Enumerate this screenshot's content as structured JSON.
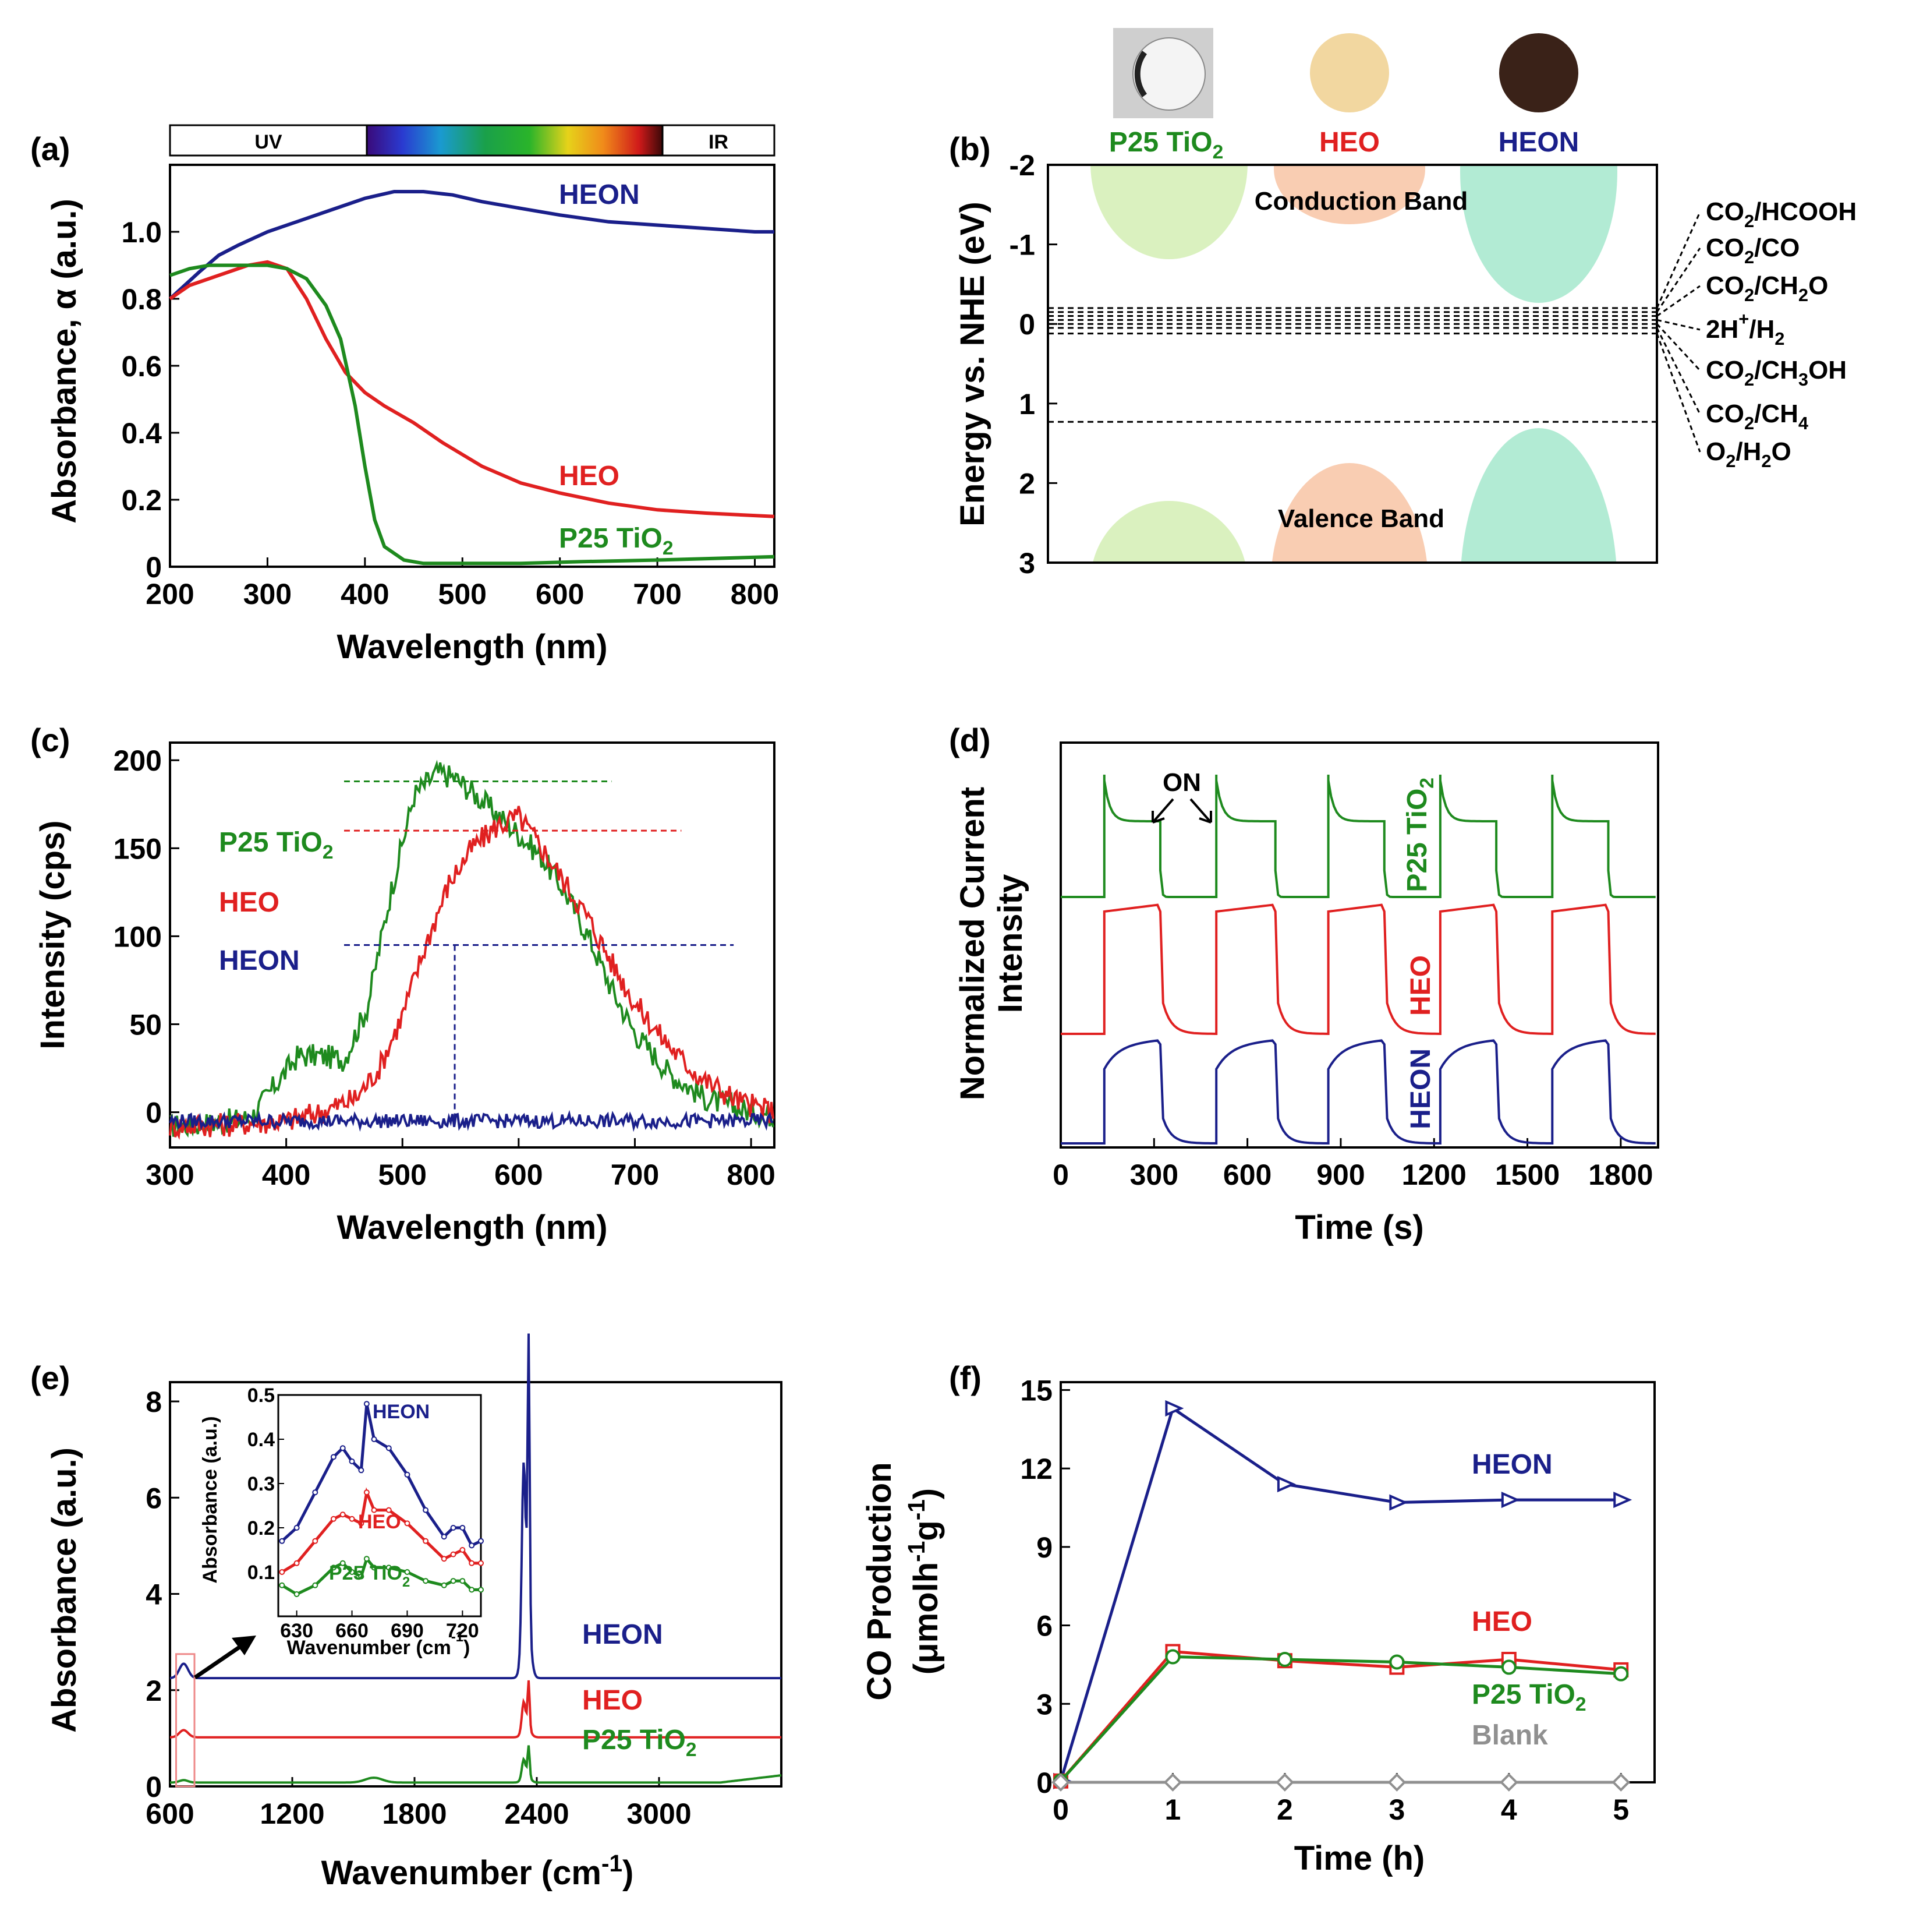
{
  "colors": {
    "heon": "#1a1f8a",
    "heo": "#e02020",
    "p25": "#1e8a1e",
    "blank": "#909090"
  },
  "chart_data": [
    {
      "panel": "(a)",
      "type": "line",
      "xlabel": "Wavelength (nm)",
      "ylabel": "Absorbance, α (a.u.)",
      "xlim": [
        200,
        820
      ],
      "ylim": [
        0,
        1.2
      ],
      "xticks": [
        "200",
        "300",
        "400",
        "500",
        "600",
        "700",
        "800"
      ],
      "yticks": [
        "0",
        "0.2",
        "0.4",
        "0.6",
        "0.8",
        "1.0"
      ],
      "spectrum_bar": {
        "left": "UV",
        "right": "IR"
      },
      "series": [
        {
          "name": "HEON",
          "label": "HEON",
          "color": "#1a1f8a",
          "x": [
            200,
            215,
            230,
            250,
            270,
            300,
            330,
            360,
            380,
            400,
            430,
            460,
            490,
            520,
            560,
            600,
            650,
            700,
            750,
            800,
            820
          ],
          "y": [
            0.8,
            0.84,
            0.88,
            0.93,
            0.96,
            1.0,
            1.03,
            1.06,
            1.08,
            1.1,
            1.12,
            1.12,
            1.11,
            1.09,
            1.07,
            1.05,
            1.03,
            1.02,
            1.01,
            1.0,
            1.0
          ]
        },
        {
          "name": "HEO",
          "label": "HEO",
          "color": "#e02020",
          "x": [
            200,
            220,
            240,
            260,
            280,
            300,
            320,
            340,
            360,
            380,
            400,
            420,
            450,
            480,
            520,
            560,
            600,
            650,
            700,
            750,
            820
          ],
          "y": [
            0.8,
            0.84,
            0.86,
            0.88,
            0.9,
            0.91,
            0.89,
            0.8,
            0.68,
            0.58,
            0.52,
            0.48,
            0.43,
            0.37,
            0.3,
            0.25,
            0.22,
            0.19,
            0.17,
            0.16,
            0.15
          ]
        },
        {
          "name": "P25 TiO₂",
          "label": "P25 TiO",
          "sub": "2",
          "color": "#1e8a1e",
          "x": [
            200,
            220,
            240,
            260,
            280,
            300,
            320,
            340,
            360,
            375,
            390,
            400,
            410,
            420,
            440,
            460,
            500,
            560,
            620,
            700,
            820
          ],
          "y": [
            0.87,
            0.89,
            0.9,
            0.9,
            0.9,
            0.9,
            0.89,
            0.86,
            0.78,
            0.68,
            0.48,
            0.3,
            0.14,
            0.06,
            0.02,
            0.01,
            0.01,
            0.01,
            0.015,
            0.02,
            0.03
          ]
        }
      ]
    },
    {
      "panel": "(b)",
      "type": "diagram",
      "ylabel": "Energy vs. NHE (eV)",
      "ylim": [
        -2,
        3
      ],
      "yticks": [
        "-2",
        "-1",
        "0",
        "1",
        "2",
        "3"
      ],
      "materials": [
        "P25 TiO",
        "HEO",
        "HEON"
      ],
      "material_sub": [
        "2",
        "",
        ""
      ],
      "band_labels": {
        "cb": "Conduction Band",
        "vb": "Valence Band"
      },
      "potential_lines_eV": [
        -0.2,
        -0.15,
        -0.1,
        -0.05,
        0.0,
        0.05,
        0.12,
        1.23
      ],
      "redox_labels": [
        {
          "main": "CO",
          "sub": "2",
          "rest": "/HCOOH"
        },
        {
          "main": "CO",
          "sub": "2",
          "rest": "/CO"
        },
        {
          "main": "CO",
          "sub": "2",
          "rest": "/CH",
          "sub2": "2",
          "rest2": "O"
        },
        {
          "main": "2H",
          "sup": "+",
          "rest": "/H",
          "sub2": "2",
          "rest2": ""
        },
        {
          "main": "CO",
          "sub": "2",
          "rest": "/CH",
          "sub2": "3",
          "rest2": "OH"
        },
        {
          "main": "CO",
          "sub": "2",
          "rest": "/CH",
          "sub2": "4",
          "rest2": ""
        },
        {
          "main": "O",
          "sub": "2",
          "rest": "/H",
          "sub2": "2",
          "rest2": "O"
        }
      ]
    },
    {
      "panel": "(c)",
      "type": "line",
      "xlabel": "Wavelength (nm)",
      "ylabel": "Intensity (cps)",
      "xlim": [
        300,
        820
      ],
      "ylim": [
        -20,
        210
      ],
      "xticks": [
        "300",
        "400",
        "500",
        "600",
        "700",
        "800"
      ],
      "yticks": [
        "0",
        "50",
        "100",
        "150",
        "200"
      ],
      "series": [
        {
          "name": "P25 TiO₂",
          "label": "P25 TiO",
          "sub": "2",
          "color": "#1e8a1e",
          "x": [
            300,
            340,
            370,
            390,
            410,
            430,
            450,
            470,
            490,
            510,
            530,
            545,
            560,
            580,
            600,
            620,
            640,
            660,
            680,
            700,
            730,
            760,
            790,
            820
          ],
          "y": [
            -8,
            -6,
            -3,
            15,
            32,
            32,
            30,
            60,
            125,
            180,
            193,
            190,
            182,
            170,
            158,
            145,
            125,
            100,
            70,
            45,
            22,
            8,
            2,
            -2
          ]
        },
        {
          "name": "HEO",
          "label": "HEO",
          "color": "#e02020",
          "x": [
            300,
            350,
            400,
            430,
            460,
            480,
            500,
            520,
            540,
            560,
            580,
            600,
            620,
            640,
            660,
            680,
            700,
            720,
            740,
            760,
            790,
            820
          ],
          "y": [
            -8,
            -7,
            -5,
            0,
            8,
            25,
            55,
            95,
            130,
            150,
            162,
            168,
            150,
            130,
            110,
            85,
            62,
            45,
            30,
            18,
            6,
            0
          ]
        },
        {
          "name": "HEON",
          "label": "HEON",
          "color": "#1a1f8a",
          "x": [
            300,
            380,
            460,
            540,
            620,
            700,
            820
          ],
          "y": [
            -5,
            -5,
            -5,
            -5,
            -5,
            -5,
            -5
          ]
        }
      ]
    },
    {
      "panel": "(d)",
      "type": "line",
      "xlabel": "Time (s)",
      "ylabel": "Normalized Current Intensity",
      "xlim": [
        0,
        1920
      ],
      "xticks": [
        "0",
        "300",
        "600",
        "900",
        "1200",
        "1500",
        "1800"
      ],
      "annotation": "ON",
      "light_on_intervals_s": [
        [
          140,
          320
        ],
        [
          500,
          690
        ],
        [
          860,
          1040
        ],
        [
          1220,
          1400
        ],
        [
          1580,
          1760
        ]
      ],
      "series": [
        {
          "name": "P25 TiO₂",
          "label": "P25 TiO",
          "sub": "2",
          "color": "#1e8a1e"
        },
        {
          "name": "HEO",
          "label": "HEO",
          "color": "#e02020"
        },
        {
          "name": "HEON",
          "label": "HEON",
          "color": "#1a1f8a"
        }
      ]
    },
    {
      "panel": "(e)",
      "type": "line",
      "xlabel": "Wavenumber (cm",
      "xlabel_sup": "-1",
      "xlabel_end": ")",
      "ylabel": "Absorbance (a.u.)",
      "xlim": [
        600,
        3600
      ],
      "ylim": [
        0,
        8.4
      ],
      "xticks": [
        "600",
        "1200",
        "1800",
        "2400",
        "3000"
      ],
      "yticks": [
        "0",
        "2",
        "4",
        "6",
        "8"
      ],
      "series": [
        {
          "name": "HEON",
          "label": "HEON",
          "color": "#1a1f8a",
          "baseline": 2.25,
          "band_667": 0.3,
          "peak_2350": 5.75
        },
        {
          "name": "HEO",
          "label": "HEO",
          "color": "#e02020",
          "baseline": 1.02,
          "band_667": 0.15,
          "peak_2350": 0.95
        },
        {
          "name": "P25 TiO₂",
          "label": "P25 TiO",
          "sub": "2",
          "color": "#1e8a1e",
          "baseline": 0.08,
          "band_667": 0.05,
          "peak_2350": 0.62
        }
      ],
      "inset": {
        "xlabel": "Wavenumber (cm",
        "xlabel_sup": "-1",
        "xlabel_end": ")",
        "ylabel": "Absorbance (a.u.)",
        "xlim": [
          620,
          730
        ],
        "ylim": [
          0,
          0.5
        ],
        "xticks": [
          "630",
          "660",
          "690",
          "720"
        ],
        "yticks": [
          "0.1",
          "0.2",
          "0.3",
          "0.4",
          "0.5"
        ],
        "series": [
          {
            "name": "HEON",
            "label": "HEON",
            "color": "#1a1f8a",
            "x": [
              622,
              630,
              640,
              650,
              655,
              660,
              665,
              668,
              672,
              680,
              690,
              700,
              710,
              715,
              720,
              725,
              730
            ],
            "y": [
              0.17,
              0.2,
              0.28,
              0.36,
              0.38,
              0.35,
              0.33,
              0.48,
              0.4,
              0.38,
              0.32,
              0.24,
              0.18,
              0.2,
              0.2,
              0.16,
              0.17
            ]
          },
          {
            "name": "HEO",
            "label": "HEO",
            "color": "#e02020",
            "x": [
              622,
              630,
              640,
              650,
              655,
              660,
              665,
              668,
              672,
              680,
              690,
              700,
              710,
              715,
              720,
              725,
              730
            ],
            "y": [
              0.1,
              0.12,
              0.17,
              0.22,
              0.23,
              0.22,
              0.21,
              0.28,
              0.24,
              0.24,
              0.21,
              0.17,
              0.13,
              0.14,
              0.15,
              0.12,
              0.12
            ]
          },
          {
            "name": "P25 TiO₂",
            "label": "P25 TiO",
            "sub": "2",
            "color": "#1e8a1e",
            "x": [
              622,
              630,
              640,
              650,
              655,
              660,
              665,
              668,
              672,
              680,
              690,
              700,
              710,
              715,
              720,
              725,
              730
            ],
            "y": [
              0.07,
              0.05,
              0.07,
              0.11,
              0.12,
              0.1,
              0.09,
              0.13,
              0.11,
              0.11,
              0.1,
              0.08,
              0.07,
              0.08,
              0.08,
              0.06,
              0.06
            ]
          }
        ]
      }
    },
    {
      "panel": "(f)",
      "type": "line",
      "xlabel": "Time (h)",
      "ylabel": "CO Production",
      "ylabel2": "(μmolh",
      "ylabel2_sup1": "-1",
      "ylabel2_mid": "g",
      "ylabel2_sup2": "-1",
      "ylabel2_end": ")",
      "xlim": [
        0,
        5.3
      ],
      "ylim": [
        0,
        15.3
      ],
      "xticks": [
        "0",
        "1",
        "2",
        "3",
        "4",
        "5"
      ],
      "yticks": [
        "0",
        "3",
        "6",
        "9",
        "12",
        "15"
      ],
      "series": [
        {
          "name": "HEON",
          "label": "HEON",
          "color": "#1a1f8a",
          "marker": "triangle-right",
          "x": [
            0,
            1,
            2,
            3,
            4,
            5
          ],
          "y": [
            0.05,
            14.3,
            11.4,
            10.7,
            10.8,
            10.8
          ]
        },
        {
          "name": "HEO",
          "label": "HEO",
          "color": "#e02020",
          "marker": "square",
          "x": [
            0,
            1,
            2,
            3,
            4,
            5
          ],
          "y": [
            0.05,
            5.0,
            4.65,
            4.4,
            4.7,
            4.3
          ]
        },
        {
          "name": "P25 TiO₂",
          "label": "P25 TiO",
          "sub": "2",
          "color": "#1e8a1e",
          "marker": "circle",
          "x": [
            0,
            1,
            2,
            3,
            4,
            5
          ],
          "y": [
            0.05,
            4.8,
            4.7,
            4.6,
            4.4,
            4.15
          ]
        },
        {
          "name": "Blank",
          "label": "Blank",
          "color": "#909090",
          "marker": "diamond",
          "x": [
            0,
            1,
            2,
            3,
            4,
            5
          ],
          "y": [
            0,
            0,
            0,
            0,
            0,
            0
          ]
        }
      ]
    }
  ]
}
